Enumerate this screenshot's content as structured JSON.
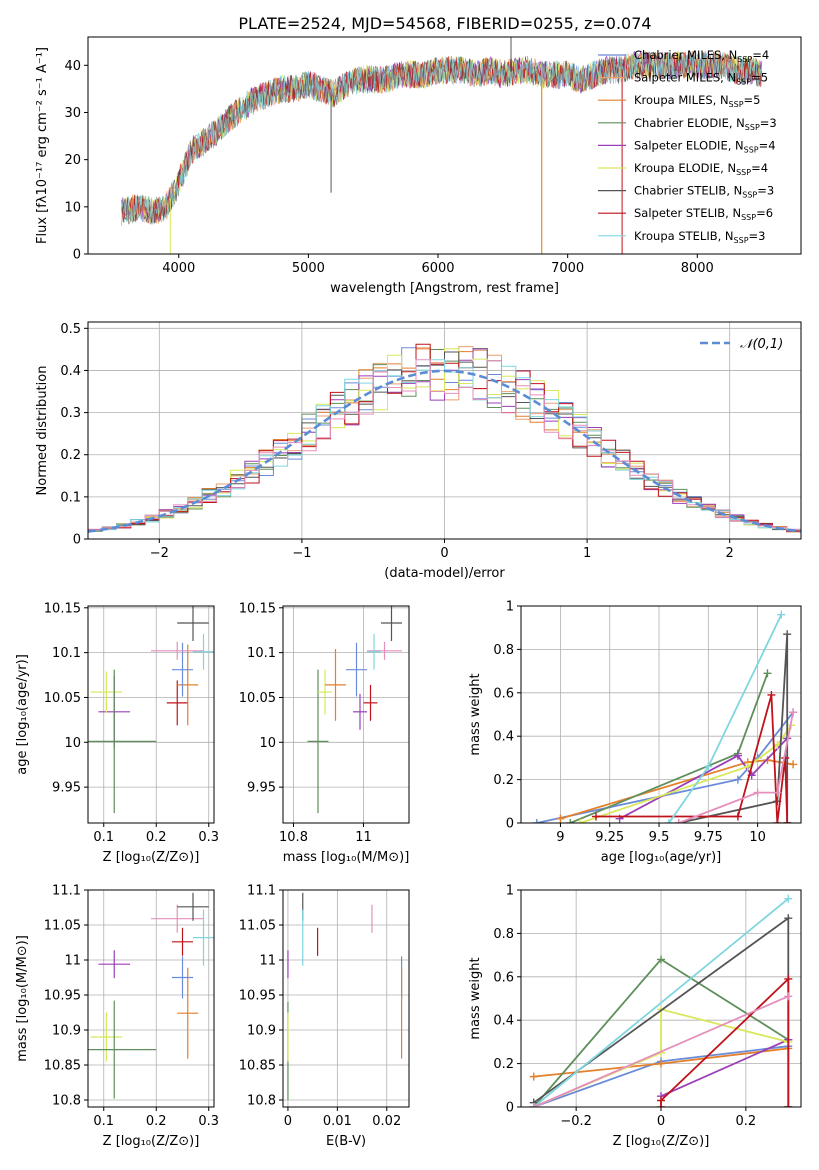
{
  "figure_title": "PLATE=2524, MJD=54568, FIBERID=0255, z=0.074",
  "model_colors": {
    "Chabrier MILES": "#6a8bd8",
    "Salpeter MILES": "#e8a070",
    "Kroupa MILES": "#e47f2a",
    "Chabrier ELODIE": "#5f8f5a",
    "Salpeter ELODIE": "#9b3fb8",
    "Kroupa ELODIE": "#d8e85a",
    "Chabrier STELIB": "#555555",
    "Salpeter STELIB": "#c0121a",
    "Kroupa STELIB": "#7fd6e0",
    "Pink model": "#e58fbd"
  },
  "chart_data": [
    {
      "type": "line",
      "title": "",
      "xlabel": "wavelength [Angstrom, rest frame]",
      "ylabel": "Flux [fλ10⁻¹⁷ erg cm⁻² s⁻¹ A⁻¹]",
      "xlim": [
        3300,
        8800
      ],
      "ylim": [
        0,
        46
      ],
      "xticks": [
        4000,
        5000,
        6000,
        7000,
        8000
      ],
      "yticks": [
        0,
        10,
        20,
        30,
        40
      ],
      "grid": false,
      "legend_position": "top-right",
      "legend": [
        {
          "label": "Chabrier MILES, N",
          "sub": "SSP",
          "tail": "=4",
          "color": "#6a8bd8"
        },
        {
          "label": "Salpeter MILES, N",
          "sub": "SSP",
          "tail": "=5",
          "color": "#e8a070"
        },
        {
          "label": "Kroupa MILES, N",
          "sub": "SSP",
          "tail": "=5",
          "color": "#e47f2a"
        },
        {
          "label": "Chabrier ELODIE, N",
          "sub": "SSP",
          "tail": "=3",
          "color": "#5f8f5a"
        },
        {
          "label": "Salpeter ELODIE, N",
          "sub": "SSP",
          "tail": "=4",
          "color": "#9b3fb8"
        },
        {
          "label": "Kroupa ELODIE, N",
          "sub": "SSP",
          "tail": "=4",
          "color": "#d8e85a"
        },
        {
          "label": "Chabrier STELIB, N",
          "sub": "SSP",
          "tail": "=3",
          "color": "#555555"
        },
        {
          "label": "Salpeter STELIB, N",
          "sub": "SSP",
          "tail": "=6",
          "color": "#c0121a"
        },
        {
          "label": "Kroupa STELIB, N",
          "sub": "SSP",
          "tail": "=3",
          "color": "#7fd6e0"
        }
      ],
      "continuum": [
        [
          3560,
          9
        ],
        [
          3700,
          10
        ],
        [
          3800,
          9
        ],
        [
          3900,
          10
        ],
        [
          4000,
          15
        ],
        [
          4100,
          22
        ],
        [
          4200,
          24
        ],
        [
          4300,
          26
        ],
        [
          4400,
          29
        ],
        [
          4500,
          31
        ],
        [
          4600,
          33
        ],
        [
          4700,
          34
        ],
        [
          4800,
          35
        ],
        [
          4900,
          35
        ],
        [
          5000,
          36
        ],
        [
          5100,
          35
        ],
        [
          5200,
          34
        ],
        [
          5300,
          36
        ],
        [
          5400,
          37
        ],
        [
          5500,
          37
        ],
        [
          5600,
          37
        ],
        [
          5700,
          38
        ],
        [
          5800,
          38
        ],
        [
          5900,
          38
        ],
        [
          6000,
          39
        ],
        [
          6100,
          39
        ],
        [
          6200,
          39
        ],
        [
          6300,
          38
        ],
        [
          6400,
          39
        ],
        [
          6500,
          38
        ],
        [
          6600,
          39
        ],
        [
          6700,
          39
        ],
        [
          6800,
          38
        ],
        [
          6900,
          38
        ],
        [
          7000,
          38
        ],
        [
          7100,
          37
        ],
        [
          7200,
          38
        ],
        [
          7300,
          39
        ],
        [
          7400,
          39
        ],
        [
          7500,
          40
        ],
        [
          7600,
          40
        ],
        [
          7700,
          40
        ],
        [
          7800,
          40
        ],
        [
          7900,
          40
        ],
        [
          8000,
          40
        ],
        [
          8100,
          40
        ],
        [
          8200,
          40
        ],
        [
          8300,
          39
        ],
        [
          8400,
          39
        ],
        [
          8500,
          38
        ]
      ],
      "noise_amplitude": 3,
      "features": [
        {
          "x": 3935,
          "y": 0,
          "color": "#d8e85a"
        },
        {
          "x": 5175,
          "y": 13,
          "color": "#555555"
        },
        {
          "x": 6563,
          "y": 46,
          "color": "#555555"
        },
        {
          "x": 6800,
          "y": 0,
          "color": "#d8e85a"
        },
        {
          "x": 6800,
          "y": 0,
          "color": "#e47f2a"
        },
        {
          "x": 7420,
          "y": 0,
          "color": "#c0121a"
        }
      ]
    },
    {
      "type": "histogram",
      "title": "",
      "xlabel": "(data-model)/error",
      "ylabel": "Normed distribution",
      "xlim": [
        -2.5,
        2.5
      ],
      "ylim": [
        0,
        0.515
      ],
      "xticks": [
        -2,
        -1,
        0,
        1,
        2
      ],
      "yticks": [
        0.0,
        0.1,
        0.2,
        0.3,
        0.4,
        0.5
      ],
      "grid": true,
      "legend_position": "top-right",
      "reference": {
        "label": "𝒩(0,1)",
        "mean": 0,
        "sigma": 1,
        "color": "#5b8dd6"
      },
      "bin_width": 0.1,
      "models": 10
    },
    {
      "type": "scatter",
      "xlabel": "Z [log₁₀(Z/Z⊙)]",
      "ylabel": "age  [log₁₀(age/yr)]",
      "xlim": [
        0.07,
        0.31
      ],
      "ylim": [
        9.91,
        10.152
      ],
      "xticks": [
        0.1,
        0.2,
        0.3
      ],
      "yticks": [
        9.95,
        10.0,
        10.05,
        10.1,
        10.15
      ],
      "grid": true,
      "points": [
        {
          "x": 0.12,
          "y": 10.034,
          "ex": 0.03,
          "ey": 0.04,
          "color": "#9b3fb8"
        },
        {
          "x": 0.105,
          "y": 10.056,
          "ex": 0.03,
          "ey": 0.023,
          "color": "#d8e85a"
        },
        {
          "x": 0.12,
          "y": 10.001,
          "ex": 0.08,
          "ey": 0.08,
          "color": "#5f8f5a"
        },
        {
          "x": 0.24,
          "y": 10.044,
          "ex": 0.02,
          "ey": 0.025,
          "color": "#c0121a"
        },
        {
          "x": 0.26,
          "y": 10.064,
          "ex": 0.02,
          "ey": 0.045,
          "color": "#e47f2a"
        },
        {
          "x": 0.25,
          "y": 10.081,
          "ex": 0.02,
          "ey": 0.03,
          "color": "#6a8bd8"
        },
        {
          "x": 0.24,
          "y": 10.102,
          "ex": 0.05,
          "ey": 0.01,
          "color": "#e58fbd"
        },
        {
          "x": 0.29,
          "y": 10.101,
          "ex": 0.02,
          "ey": 0.02,
          "color": "#7fd6e0"
        },
        {
          "x": 0.27,
          "y": 10.133,
          "ex": 0.03,
          "ey": 0.02,
          "color": "#555555"
        }
      ]
    },
    {
      "type": "scatter",
      "xlabel": "mass [log₁₀(M/M⊙)]",
      "ylabel": "",
      "xlim": [
        10.77,
        11.13
      ],
      "ylim": [
        9.91,
        10.152
      ],
      "xticks": [
        10.8,
        11.0
      ],
      "yticks": [
        9.95,
        10.0,
        10.05,
        10.1,
        10.15
      ],
      "grid": true,
      "points": [
        {
          "x": 10.87,
          "y": 10.001,
          "ex": 0.03,
          "ey": 0.08,
          "color": "#5f8f5a"
        },
        {
          "x": 10.89,
          "y": 10.056,
          "ex": 0.02,
          "ey": 0.025,
          "color": "#d8e85a"
        },
        {
          "x": 10.92,
          "y": 10.064,
          "ex": 0.03,
          "ey": 0.04,
          "color": "#e47f2a"
        },
        {
          "x": 10.99,
          "y": 10.034,
          "ex": 0.02,
          "ey": 0.02,
          "color": "#9b3fb8"
        },
        {
          "x": 11.02,
          "y": 10.044,
          "ex": 0.02,
          "ey": 0.02,
          "color": "#c0121a"
        },
        {
          "x": 10.98,
          "y": 10.081,
          "ex": 0.03,
          "ey": 0.03,
          "color": "#6a8bd8"
        },
        {
          "x": 11.06,
          "y": 10.102,
          "ex": 0.05,
          "ey": 0.01,
          "color": "#e58fbd"
        },
        {
          "x": 11.03,
          "y": 10.101,
          "ex": 0.02,
          "ey": 0.02,
          "color": "#7fd6e0"
        },
        {
          "x": 11.08,
          "y": 10.133,
          "ex": 0.03,
          "ey": 0.02,
          "color": "#555555"
        }
      ]
    },
    {
      "type": "line",
      "xlabel": "age  [log₁₀(age/yr)]",
      "ylabel": "mass weight",
      "xlim": [
        8.8,
        10.22
      ],
      "ylim": [
        0,
        1
      ],
      "xticks": [
        9.0,
        9.25,
        9.5,
        9.75,
        10.0
      ],
      "yticks": [
        0.0,
        0.2,
        0.4,
        0.6,
        0.8,
        1.0
      ],
      "grid": true,
      "series": [
        {
          "color": "#6a8bd8",
          "x": [
            8.88,
            9.9,
            10.0,
            10.18
          ],
          "y": [
            0.0,
            0.2,
            0.3,
            0.51
          ]
        },
        {
          "color": "#e47f2a",
          "x": [
            9.0,
            9.95,
            10.05,
            10.18
          ],
          "y": [
            0.02,
            0.28,
            0.29,
            0.27
          ]
        },
        {
          "color": "#5f8f5a",
          "x": [
            9.05,
            9.9,
            10.05
          ],
          "y": [
            0.0,
            0.32,
            0.69
          ]
        },
        {
          "color": "#9b3fb8",
          "x": [
            9.3,
            9.9,
            9.97,
            10.15
          ],
          "y": [
            0.02,
            0.31,
            0.22,
            0.39
          ]
        },
        {
          "color": "#d8e85a",
          "x": [
            9.1,
            9.95,
            10.1,
            10.17
          ],
          "y": [
            0.0,
            0.26,
            0.36,
            0.45
          ]
        },
        {
          "color": "#555555",
          "x": [
            9.6,
            10.1,
            10.15,
            10.15
          ],
          "y": [
            0.0,
            0.1,
            0.87,
            0.0
          ]
        },
        {
          "color": "#c0121a",
          "x": [
            9.18,
            9.9,
            10.07,
            10.1,
            10.14,
            10.15
          ],
          "y": [
            0.03,
            0.03,
            0.59,
            0.0,
            0.3,
            0.0
          ]
        },
        {
          "color": "#7fd6e0",
          "x": [
            9.55,
            9.75,
            10.12
          ],
          "y": [
            0.0,
            0.26,
            0.96
          ]
        },
        {
          "color": "#e58fbd",
          "x": [
            9.6,
            10.0,
            10.1,
            10.18
          ],
          "y": [
            0.0,
            0.14,
            0.14,
            0.51
          ]
        }
      ]
    },
    {
      "type": "scatter",
      "xlabel": "Z [log₁₀(Z/Z⊙)]",
      "ylabel": "mass [log₁₀(M/M⊙)]",
      "xlim": [
        0.07,
        0.31
      ],
      "ylim": [
        10.79,
        11.1
      ],
      "xticks": [
        0.1,
        0.2,
        0.3
      ],
      "yticks": [
        10.8,
        10.85,
        10.9,
        10.95,
        11.0,
        11.05,
        11.1
      ],
      "grid": true,
      "points": [
        {
          "x": 0.12,
          "y": 10.994,
          "ex": 0.03,
          "ey": 0.02,
          "color": "#9b3fb8"
        },
        {
          "x": 0.105,
          "y": 10.89,
          "ex": 0.03,
          "ey": 0.035,
          "color": "#d8e85a"
        },
        {
          "x": 0.12,
          "y": 10.872,
          "ex": 0.08,
          "ey": 0.07,
          "color": "#5f8f5a"
        },
        {
          "x": 0.26,
          "y": 10.924,
          "ex": 0.02,
          "ey": 0.065,
          "color": "#e47f2a"
        },
        {
          "x": 0.25,
          "y": 10.975,
          "ex": 0.02,
          "ey": 0.03,
          "color": "#6a8bd8"
        },
        {
          "x": 0.24,
          "y": 11.059,
          "ex": 0.05,
          "ey": 0.02,
          "color": "#e58fbd"
        },
        {
          "x": 0.25,
          "y": 11.026,
          "ex": 0.02,
          "ey": 0.02,
          "color": "#c0121a"
        },
        {
          "x": 0.29,
          "y": 11.032,
          "ex": 0.02,
          "ey": 0.04,
          "color": "#7fd6e0"
        },
        {
          "x": 0.27,
          "y": 11.076,
          "ex": 0.03,
          "ey": 0.02,
          "color": "#555555"
        }
      ]
    },
    {
      "type": "scatter",
      "xlabel": "E(B-V)",
      "ylabel": "",
      "xlim": [
        -0.001,
        0.0245
      ],
      "ylim": [
        10.79,
        11.1
      ],
      "xticks": [
        0.0,
        0.01,
        0.02
      ],
      "yticks": [
        10.8,
        10.85,
        10.9,
        10.95,
        11.0,
        11.05,
        11.1
      ],
      "grid": true,
      "points": [
        {
          "x": 0.0,
          "y": 10.87,
          "ex": 0,
          "ey": 0.07,
          "color": "#5f8f5a"
        },
        {
          "x": 0.0,
          "y": 10.89,
          "ex": 0,
          "ey": 0.035,
          "color": "#d8e85a"
        },
        {
          "x": 0.0,
          "y": 10.994,
          "ex": 0,
          "ey": 0.02,
          "color": "#9b3fb8"
        },
        {
          "x": 0.003,
          "y": 11.076,
          "ex": 0,
          "ey": 0.02,
          "color": "#555555"
        },
        {
          "x": 0.003,
          "y": 11.032,
          "ex": 0,
          "ey": 0.04,
          "color": "#7fd6e0"
        },
        {
          "x": 0.006,
          "y": 11.026,
          "ex": 0,
          "ey": 0.02,
          "color": "#c0121a"
        },
        {
          "x": 0.017,
          "y": 11.059,
          "ex": 0,
          "ey": 0.02,
          "color": "#e58fbd"
        },
        {
          "x": 0.023,
          "y": 10.975,
          "ex": 0,
          "ey": 0.03,
          "color": "#6a8bd8"
        },
        {
          "x": 0.023,
          "y": 10.924,
          "ex": 0,
          "ey": 0.065,
          "color": "#e47f2a"
        }
      ]
    },
    {
      "type": "line",
      "xlabel": "Z [log₁₀(Z/Z⊙)]",
      "ylabel": "mass weight",
      "xlim": [
        -0.33,
        0.33
      ],
      "ylim": [
        0,
        1
      ],
      "xticks": [
        -0.2,
        0.0,
        0.2
      ],
      "yticks": [
        0.0,
        0.2,
        0.4,
        0.6,
        0.8,
        1.0
      ],
      "grid": true,
      "series": [
        {
          "color": "#6a8bd8",
          "x": [
            -0.3,
            0.0,
            0.3
          ],
          "y": [
            0.0,
            0.21,
            0.28
          ]
        },
        {
          "color": "#e47f2a",
          "x": [
            -0.3,
            0.0,
            0.3
          ],
          "y": [
            0.14,
            0.2,
            0.27
          ]
        },
        {
          "color": "#5f8f5a",
          "x": [
            -0.3,
            0.0,
            0.3
          ],
          "y": [
            0.0,
            0.68,
            0.31
          ]
        },
        {
          "color": "#9b3fb8",
          "x": [
            0.0,
            0.3
          ],
          "y": [
            0.05,
            0.31
          ]
        },
        {
          "color": "#d8e85a",
          "x": [
            -0.3,
            0.0,
            0.0,
            0.3
          ],
          "y": [
            0.0,
            0.25,
            0.45,
            0.3
          ]
        },
        {
          "color": "#555555",
          "x": [
            -0.3,
            0.3,
            0.3
          ],
          "y": [
            0.02,
            0.87,
            0.0
          ]
        },
        {
          "color": "#c0121a",
          "x": [
            0.0,
            0.0,
            0.3,
            0.3
          ],
          "y": [
            0.0,
            0.03,
            0.59,
            0.0
          ]
        },
        {
          "color": "#7fd6e0",
          "x": [
            -0.3,
            0.3
          ],
          "y": [
            0.0,
            0.96
          ]
        },
        {
          "color": "#e58fbd",
          "x": [
            -0.3,
            0.3
          ],
          "y": [
            0.0,
            0.51
          ]
        }
      ]
    }
  ]
}
